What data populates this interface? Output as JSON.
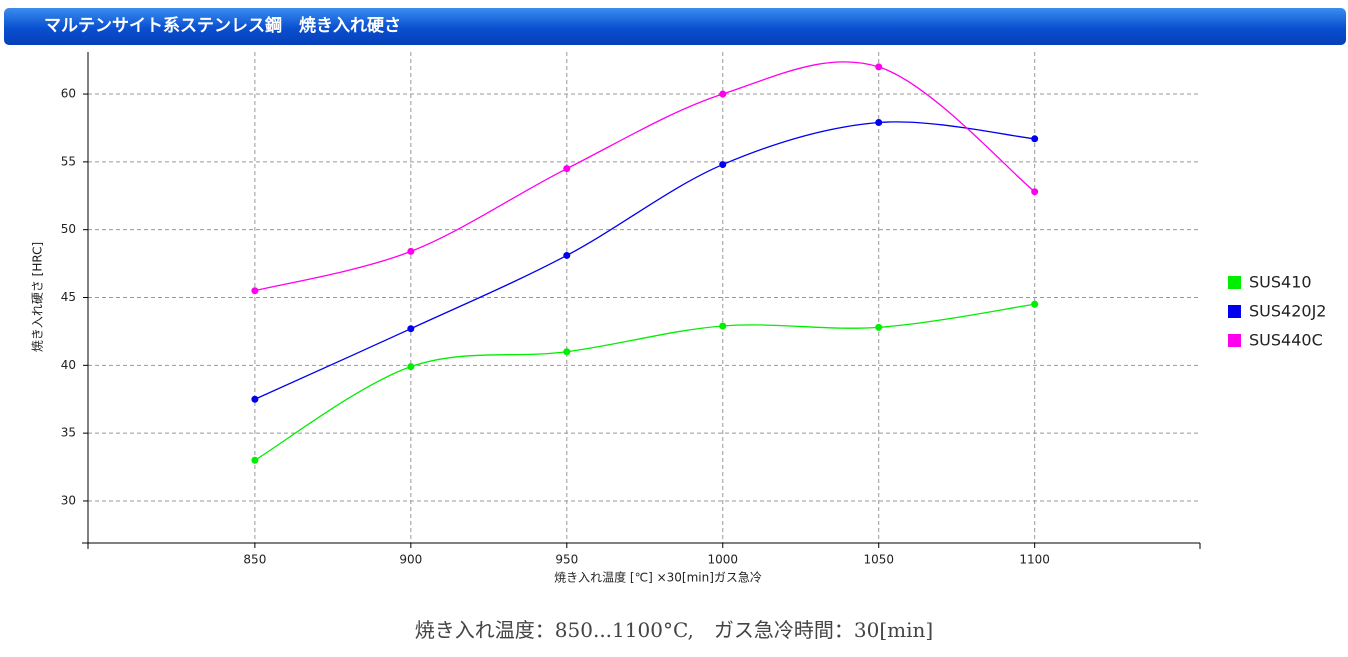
{
  "chart_data": {
    "type": "line",
    "title": "マルテンサイト系ステンレス鋼　焼き入れ硬さ",
    "x_label": "焼き入れ温度 [℃] ×30[min]ガス急冷",
    "y_label": "焼き入れ硬さ [HRC]",
    "footer": "焼き入れ温度：850...1100°C,　ガス急冷時間：30[min]",
    "x": [
      850,
      900,
      950,
      1000,
      1050,
      1100
    ],
    "series": [
      {
        "name": "SUS410",
        "color": "#00ee00",
        "values": [
          33.0,
          39.9,
          41.0,
          42.9,
          42.8,
          44.5
        ]
      },
      {
        "name": "SUS420J2",
        "color": "#0000ee",
        "values": [
          37.5,
          42.7,
          48.1,
          54.8,
          57.9,
          56.7
        ]
      },
      {
        "name": "SUS440C",
        "color": "#ff00ee",
        "values": [
          45.5,
          48.4,
          54.5,
          60.0,
          62.0,
          52.8
        ]
      }
    ],
    "xlim": [
      796.5,
      1153
    ],
    "xticks": [
      850,
      900,
      950,
      1000,
      1050,
      1100
    ],
    "ylim": [
      26.9,
      63.1
    ],
    "yticks": [
      30,
      35,
      40,
      45,
      50,
      55,
      60
    ],
    "grid": true,
    "smooth": true,
    "legend": "right"
  }
}
